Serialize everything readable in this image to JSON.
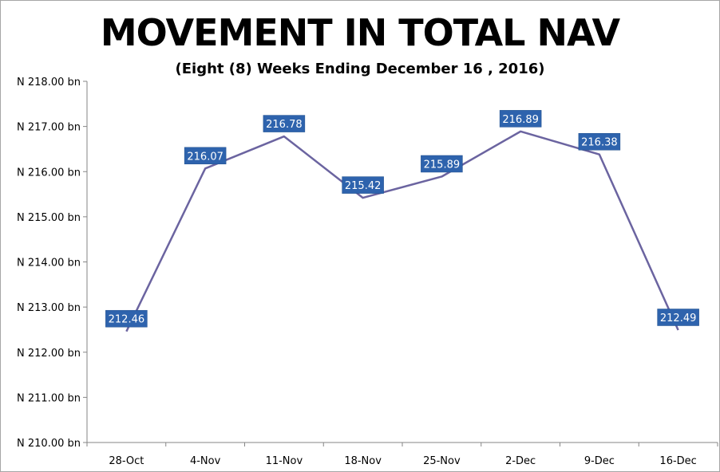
{
  "chart_data": {
    "type": "line",
    "title": "MOVEMENT IN TOTAL NAV",
    "subtitle": "(Eight (8) Weeks Ending December 16 , 2016)",
    "categories": [
      "28-Oct",
      "4-Nov",
      "11-Nov",
      "18-Nov",
      "25-Nov",
      "2-Dec",
      "9-Dec",
      "16-Dec"
    ],
    "series": [
      {
        "values": [
          212.46,
          216.07,
          216.78,
          215.42,
          215.89,
          216.89,
          216.38,
          212.49
        ],
        "data_labels": [
          "212.46",
          "216.07",
          "216.78",
          "215.42",
          "215.89",
          "216.89",
          "216.38",
          "212.49"
        ]
      }
    ],
    "ylim": [
      210,
      218
    ],
    "y_ticks": [
      210,
      211,
      212,
      213,
      214,
      215,
      216,
      217,
      218
    ],
    "y_tick_labels": [
      "N 210.00 bn",
      "N 211.00 bn",
      "N 212.00 bn",
      "N 213.00 bn",
      "N 214.00 bn",
      "N 215.00 bn",
      "N 216.00 bn",
      "N 217.00 bn",
      "N 218.00 bn"
    ],
    "xlabel": "",
    "ylabel": "",
    "grid": false,
    "legend": "none",
    "colors": {
      "line": "#6b64a0",
      "label_fill": "#2e63ad",
      "label_text": "#ffffff",
      "axis": "#868686"
    }
  }
}
